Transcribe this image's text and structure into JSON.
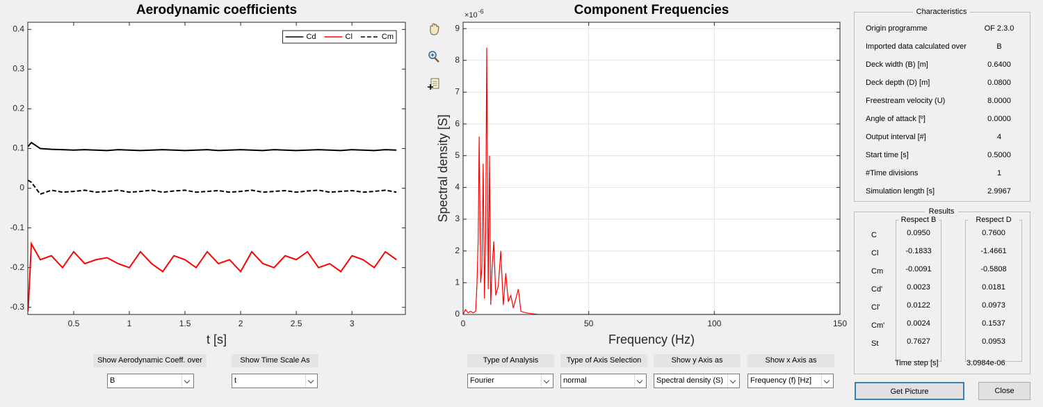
{
  "chart_data": [
    {
      "type": "line",
      "title": "Aerodynamic coefficients",
      "x_label": "t [s]",
      "x": [
        0.09,
        0.12,
        0.2,
        0.3,
        0.4,
        0.5,
        0.6,
        0.7,
        0.8,
        0.9,
        1.0,
        1.1,
        1.2,
        1.3,
        1.4,
        1.5,
        1.6,
        1.7,
        1.8,
        1.9,
        2.0,
        2.1,
        2.2,
        2.3,
        2.4,
        2.5,
        2.6,
        2.7,
        2.8,
        2.9,
        3.0,
        3.1,
        3.2,
        3.3,
        3.4
      ],
      "series": [
        {
          "name": "Cd",
          "color": "#000000",
          "dashed": false,
          "values": [
            0.105,
            0.115,
            0.1,
            0.098,
            0.097,
            0.096,
            0.097,
            0.096,
            0.095,
            0.097,
            0.096,
            0.095,
            0.096,
            0.097,
            0.096,
            0.095,
            0.096,
            0.097,
            0.095,
            0.096,
            0.097,
            0.096,
            0.095,
            0.097,
            0.096,
            0.095,
            0.096,
            0.097,
            0.096,
            0.095,
            0.097,
            0.096,
            0.095,
            0.097,
            0.096
          ]
        },
        {
          "name": "Cl",
          "color": "#ff0000",
          "dashed": false,
          "values": [
            -0.31,
            -0.14,
            -0.18,
            -0.17,
            -0.2,
            -0.16,
            -0.19,
            -0.18,
            -0.175,
            -0.19,
            -0.2,
            -0.16,
            -0.19,
            -0.21,
            -0.17,
            -0.18,
            -0.2,
            -0.16,
            -0.19,
            -0.18,
            -0.21,
            -0.16,
            -0.19,
            -0.2,
            -0.17,
            -0.18,
            -0.16,
            -0.2,
            -0.19,
            -0.21,
            -0.17,
            -0.18,
            -0.2,
            -0.16,
            -0.18
          ]
        },
        {
          "name": "Cm",
          "color": "#000000",
          "dashed": true,
          "values": [
            0.02,
            0.015,
            -0.015,
            -0.005,
            -0.01,
            -0.008,
            -0.005,
            -0.01,
            -0.008,
            -0.005,
            -0.01,
            -0.008,
            -0.005,
            -0.01,
            -0.007,
            -0.005,
            -0.01,
            -0.008,
            -0.006,
            -0.01,
            -0.008,
            -0.005,
            -0.01,
            -0.008,
            -0.006,
            -0.01,
            -0.007,
            -0.005,
            -0.01,
            -0.008,
            -0.006,
            -0.01,
            -0.008,
            -0.005,
            -0.01
          ]
        }
      ],
      "xlim": [
        0.088,
        3.48
      ],
      "ylim": [
        -0.318,
        0.418
      ],
      "xticks": [
        0.5,
        1,
        1.5,
        2,
        2.5,
        3
      ],
      "yticks": [
        -0.3,
        -0.2,
        -0.1,
        0,
        0.1,
        0.2,
        0.3,
        0.4
      ],
      "grid": false,
      "legend": "upper right"
    },
    {
      "type": "line",
      "title": "Component Frequencies",
      "x_label": "Frequency (Hz)",
      "y_label": "Spectral density [S]",
      "y_scale_label": "×10",
      "y_scale_exponent": "-6",
      "x": [
        0,
        1,
        2,
        3,
        4,
        5,
        5.5,
        6,
        6.4,
        7,
        7.5,
        8,
        8.5,
        9,
        9.4,
        10,
        10.5,
        11,
        11.5,
        12.2,
        13,
        14,
        15,
        16,
        17,
        18,
        19,
        20,
        21,
        22,
        23,
        25,
        28,
        30,
        150
      ],
      "series": [
        {
          "color": "#ff0000",
          "dashed": false,
          "values": [
            0,
            0.15,
            0.05,
            0.1,
            0.05,
            0.1,
            0.9,
            2.3,
            5.6,
            1.0,
            1.5,
            4.75,
            0.5,
            2.6,
            8.4,
            0.8,
            5.0,
            0.3,
            1.4,
            2.3,
            0.6,
            0.9,
            2.0,
            0.3,
            1.3,
            0.4,
            0.6,
            0.2,
            0.5,
            0.8,
            0.1,
            0.05,
            0.02,
            0,
            0
          ]
        }
      ],
      "xlim": [
        0,
        150
      ],
      "ylim": [
        0,
        9.2
      ],
      "xticks": [
        0,
        50,
        100,
        150
      ],
      "yticks": [
        0,
        1,
        2,
        3,
        4,
        5,
        6,
        7,
        8,
        9
      ],
      "grid": true
    }
  ],
  "controls": [
    {
      "label": "Show Aerodynamic Coeff. over",
      "value": "B"
    },
    {
      "label": "Show Time Scale As",
      "value": "t"
    },
    {
      "label": "Type of Analysis",
      "value": "Fourier"
    },
    {
      "label": "Type of Axis Selection",
      "value": "normal"
    },
    {
      "label": "Show y Axis as",
      "value": "Spectral density (S)"
    },
    {
      "label": "Show x Axis as",
      "value": "Frequency (f) [Hz]"
    }
  ],
  "characteristics": {
    "title": "Characteristics",
    "rows": [
      [
        "Origin programme",
        "OF 2.3.0"
      ],
      [
        "Imported data calculated over",
        "B"
      ],
      [
        "Deck width (B) [m]",
        "0.6400"
      ],
      [
        "Deck depth (D) [m]",
        "0.0800"
      ],
      [
        "Freestream velocity (U)",
        "8.0000"
      ],
      [
        "Angle of attack  [º]",
        "0.0000"
      ],
      [
        "Output interval [#]",
        "4"
      ],
      [
        "Start time [s]",
        "0.5000"
      ],
      [
        "#Time divisions",
        "1"
      ],
      [
        "Simulation length [s]",
        "2.9967"
      ]
    ]
  },
  "results": {
    "title": "Results",
    "columns": [
      "Respect B",
      "Respect D"
    ],
    "rows": [
      {
        "label": "C",
        "values": [
          "0.0950",
          "0.7600"
        ]
      },
      {
        "label": "Cl",
        "values": [
          "-0.1833",
          "-1.4661"
        ]
      },
      {
        "label": "Cm",
        "values": [
          "-0.0091",
          "-0.5808"
        ]
      },
      {
        "label": "Cd'",
        "values": [
          "0.0023",
          "0.0181"
        ]
      },
      {
        "label": "Cl'",
        "values": [
          "0.0122",
          "0.0973"
        ]
      },
      {
        "label": "Cm'",
        "values": [
          "0.0024",
          "0.1537"
        ]
      },
      {
        "label": "St",
        "values": [
          "0.7627",
          "0.0953"
        ]
      }
    ],
    "time_step_label": "Time step [s]",
    "time_step_value": "3.0984e-06"
  },
  "buttons": [
    "Get Picture",
    "Close"
  ]
}
